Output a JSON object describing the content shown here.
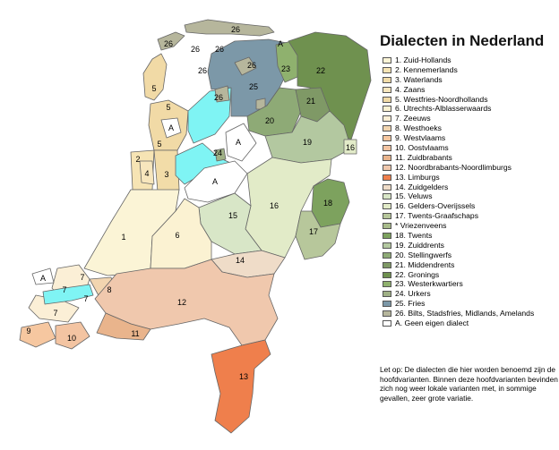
{
  "title": "Dialecten in Nederland",
  "colors": {
    "zuid_hollands": "#fbf4d6",
    "kennemerlands": "#f6e4b4",
    "waterlands": "#f2dca8",
    "zaans": "#f7e6bd",
    "westfries": "#f1daa6",
    "utrechts": "#fbf2d2",
    "zeeuws": "#fbefd6",
    "westhoeks": "#f2d5b0",
    "westvlaams": "#f6c7a0",
    "oostvlaams": "#f3c4a2",
    "zuidbrabants": "#e9b48c",
    "noordbrabants": "#f0c8ad",
    "limburgs": "#ef7f4c",
    "zuidgelders": "#efdcc8",
    "veluws": "#d8e6c7",
    "gelders_overijssels": "#e2ebc8",
    "twents_graafschaps": "#b7c79b",
    "vriezenveens": "#a9bc8b",
    "twents": "#7da25e",
    "zuiddrents": "#b3c8a0",
    "stellingwerfs": "#8eaa76",
    "middendrents": "#7f9966",
    "gronings": "#6f914f",
    "westerkwartiers": "#8fb16e",
    "urkers": "#9fb085",
    "fries": "#7c98a8",
    "bilts": "#b6b69c",
    "water": "#7ff4f4",
    "geen": "#ffffff"
  },
  "map_labels": {
    "26_wadden": "26",
    "26_a": "26",
    "26_b": "26",
    "26_c": "26",
    "26_d": "26",
    "26_e": "26",
    "26_f": "26",
    "22": "22",
    "23": "23",
    "25": "25",
    "21": "21",
    "20": "20",
    "19": "19",
    "16_ne": "16",
    "16": "16",
    "18": "18",
    "17": "17",
    "15": "15",
    "24": "24",
    "a_north": "A",
    "a_wieringen": "A",
    "a_noordoost": "A",
    "a_flevo": "A",
    "a_zeeland": "A",
    "5_a": "5",
    "5_b": "5",
    "5_c": "5",
    "2": "2",
    "3": "3",
    "4": "4",
    "1": "1",
    "6": "6",
    "14": "14",
    "12": "12",
    "13": "13",
    "7_a": "7",
    "7_b": "7",
    "7_c": "7",
    "7_d": "7",
    "8": "8",
    "9": "9",
    "10": "10",
    "11": "11"
  },
  "legend": [
    {
      "label": "1. Zuid-Hollands",
      "color": "#fbf4d6"
    },
    {
      "label": "2. Kennemerlands",
      "color": "#f6e4b4"
    },
    {
      "label": "3. Waterlands",
      "color": "#f2dca8"
    },
    {
      "label": "4. Zaans",
      "color": "#f7e6bd"
    },
    {
      "label": "5. Westfries-Noordhollands",
      "color": "#f1daa6"
    },
    {
      "label": "6. Utrechts-Alblasserwaards",
      "color": "#fbf2d2"
    },
    {
      "label": "7. Zeeuws",
      "color": "#fbefd6"
    },
    {
      "label": "8. Westhoeks",
      "color": "#f2d5b0"
    },
    {
      "label": "9. Westvlaams",
      "color": "#f6c7a0"
    },
    {
      "label": "10. Oostvlaams",
      "color": "#f3c4a2"
    },
    {
      "label": "11. Zuidbrabants",
      "color": "#e9b48c"
    },
    {
      "label": "12. Noordbrabants-Noordlimburgs",
      "color": "#f0c8ad"
    },
    {
      "label": "13. Limburgs",
      "color": "#ef7f4c"
    },
    {
      "label": "14. Zuidgelders",
      "color": "#efdcc8"
    },
    {
      "label": "15. Veluws",
      "color": "#d8e6c7"
    },
    {
      "label": "16. Gelders-Overijssels",
      "color": "#e2ebc8"
    },
    {
      "label": "17. Twents-Graafschaps",
      "color": "#b7c79b"
    },
    {
      "label": "* Vriezenveens",
      "color": "#a9bc8b",
      "sub": true
    },
    {
      "label": "18. Twents",
      "color": "#7da25e"
    },
    {
      "label": "19. Zuiddrents",
      "color": "#b3c8a0"
    },
    {
      "label": "20. Stellingwerfs",
      "color": "#8eaa76"
    },
    {
      "label": "21. Middendrents",
      "color": "#7f9966"
    },
    {
      "label": "22. Gronings",
      "color": "#6f914f"
    },
    {
      "label": "23. Westerkwartiers",
      "color": "#8fb16e"
    },
    {
      "label": "24. Urkers",
      "color": "#9fb085"
    },
    {
      "label": "25. Fries",
      "color": "#7c98a8"
    },
    {
      "label": "26. Bilts, Stadsfries, Midlands, Amelands",
      "color": "#b6b69c"
    },
    {
      "label": "A. Geen eigen dialect",
      "color": "#ffffff"
    }
  ],
  "note": "Let op: De dialecten die hier worden benoemd zijn de hoofdvarianten. Binnen deze hoofdvarianten bevinden zich nog weer lokale varianten met, in sommige gevallen, zeer grote variatie."
}
